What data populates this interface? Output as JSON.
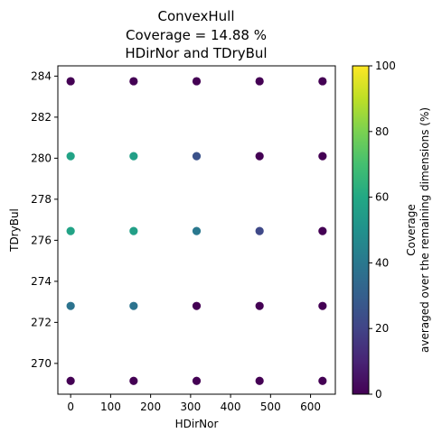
{
  "chart_data": {
    "type": "scatter",
    "title_lines": [
      "ConvexHull",
      "Coverage = 14.88 %",
      "HDirNor and TDryBul"
    ],
    "xlabel": "HDirNor",
    "ylabel": "TDryBul",
    "xlim": [
      -32,
      662
    ],
    "ylim": [
      268.5,
      284.5
    ],
    "xticks": [
      0,
      100,
      200,
      300,
      400,
      500,
      600
    ],
    "yticks": [
      270,
      272,
      274,
      276,
      278,
      280,
      282,
      284
    ],
    "colorbar": {
      "label_line1": "Coverage",
      "label_line2": "averaged over the remaining dimensions (%)",
      "min": 0,
      "max": 100,
      "ticks": [
        0,
        20,
        40,
        60,
        80,
        100
      ],
      "colormap": "viridis"
    },
    "points": [
      {
        "x": 0,
        "y": 283.75,
        "c": 0
      },
      {
        "x": 157.5,
        "y": 283.75,
        "c": 0
      },
      {
        "x": 315,
        "y": 283.75,
        "c": 0
      },
      {
        "x": 472.5,
        "y": 283.75,
        "c": 0
      },
      {
        "x": 630,
        "y": 283.75,
        "c": 0
      },
      {
        "x": 0,
        "y": 280.1,
        "c": 58
      },
      {
        "x": 157.5,
        "y": 280.1,
        "c": 56
      },
      {
        "x": 315,
        "y": 280.1,
        "c": 25
      },
      {
        "x": 472.5,
        "y": 280.1,
        "c": 0
      },
      {
        "x": 630,
        "y": 280.1,
        "c": 0
      },
      {
        "x": 0,
        "y": 276.45,
        "c": 58
      },
      {
        "x": 157.5,
        "y": 276.45,
        "c": 56
      },
      {
        "x": 315,
        "y": 276.45,
        "c": 40
      },
      {
        "x": 472.5,
        "y": 276.45,
        "c": 22
      },
      {
        "x": 630,
        "y": 276.45,
        "c": 0
      },
      {
        "x": 0,
        "y": 272.8,
        "c": 38
      },
      {
        "x": 157.5,
        "y": 272.8,
        "c": 38
      },
      {
        "x": 315,
        "y": 272.8,
        "c": 0
      },
      {
        "x": 472.5,
        "y": 272.8,
        "c": 0
      },
      {
        "x": 630,
        "y": 272.8,
        "c": 0
      },
      {
        "x": 0,
        "y": 269.15,
        "c": 0
      },
      {
        "x": 157.5,
        "y": 269.15,
        "c": 0
      },
      {
        "x": 315,
        "y": 269.15,
        "c": 0
      },
      {
        "x": 472.5,
        "y": 269.15,
        "c": 0
      },
      {
        "x": 630,
        "y": 269.15,
        "c": 0
      }
    ]
  }
}
